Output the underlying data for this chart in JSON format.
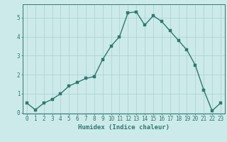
{
  "x": [
    0,
    1,
    2,
    3,
    4,
    5,
    6,
    7,
    8,
    9,
    10,
    11,
    12,
    13,
    14,
    15,
    16,
    17,
    18,
    19,
    20,
    21,
    22,
    23
  ],
  "y": [
    0.5,
    0.15,
    0.5,
    0.7,
    1.0,
    1.4,
    1.6,
    1.8,
    1.9,
    2.8,
    3.5,
    4.0,
    5.25,
    5.3,
    4.6,
    5.1,
    4.8,
    4.3,
    3.8,
    3.3,
    2.5,
    1.2,
    0.1,
    0.5
  ],
  "xlabel": "Humidex (Indice chaleur)",
  "line_color": "#2d7a6e",
  "marker_color": "#2d7a6e",
  "bg_color": "#cdeaea",
  "grid_color": "#afd4d4",
  "axis_color": "#2d7a6e",
  "tick_label_color": "#2d7a6e",
  "xlabel_color": "#2d7a6e",
  "ylim": [
    -0.05,
    5.7
  ],
  "xlim": [
    -0.5,
    23.5
  ],
  "yticks": [
    0,
    1,
    2,
    3,
    4,
    5
  ],
  "xticks": [
    0,
    1,
    2,
    3,
    4,
    5,
    6,
    7,
    8,
    9,
    10,
    11,
    12,
    13,
    14,
    15,
    16,
    17,
    18,
    19,
    20,
    21,
    22,
    23
  ],
  "xlabel_fontsize": 6.5,
  "tick_fontsize": 5.5,
  "linewidth": 1.0,
  "markersize": 2.5
}
